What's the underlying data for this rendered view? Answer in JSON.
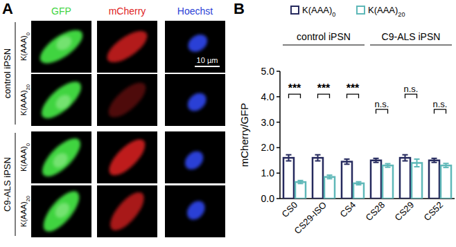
{
  "figure_labels": [
    "A",
    "B"
  ],
  "panel_a": {
    "channels": [
      {
        "name": "GFP",
        "color": "#3fd43f"
      },
      {
        "name": "mCherry",
        "color": "#e02424"
      },
      {
        "name": "Hoechst",
        "color": "#2b3fd6"
      }
    ],
    "row_groups": [
      {
        "label": "control iPSN",
        "rows": [
          "K(AAA)0",
          "K(AAA)20"
        ]
      },
      {
        "label": "C9-ALS iPSN",
        "rows": [
          "K(AAA)0",
          "K(AAA)20"
        ]
      }
    ],
    "scale_bar": "10 µm"
  },
  "chart_data": {
    "type": "bar",
    "categories": [
      "CS0",
      "CS29-ISO",
      "CS4",
      "CS28",
      "CS29",
      "CS52"
    ],
    "series": [
      {
        "name": "K(AAA)0",
        "color": "#262a5e",
        "values": [
          1.6,
          1.6,
          1.45,
          1.5,
          1.6,
          1.5
        ],
        "errors": [
          0.12,
          0.12,
          0.1,
          0.08,
          0.12,
          0.08
        ]
      },
      {
        "name": "K(AAA)20",
        "color": "#5fb8b8",
        "values": [
          0.65,
          0.85,
          0.6,
          1.3,
          1.4,
          1.3
        ],
        "errors": [
          0.06,
          0.07,
          0.06,
          0.07,
          0.15,
          0.08
        ]
      }
    ],
    "ylabel": "mCherry/GFP",
    "ylim": [
      0,
      5
    ],
    "yticks": [
      {
        "value": 0,
        "label": "0.0"
      },
      {
        "value": 1,
        "label": "1.0"
      },
      {
        "value": 2,
        "label": "2.0"
      },
      {
        "value": 3,
        "label": "3.0"
      },
      {
        "value": 4,
        "label": "4.0"
      },
      {
        "value": 5,
        "label": "5.0"
      }
    ],
    "groups": [
      {
        "label": "control iPSN",
        "from": "CS0",
        "to": "CS4"
      },
      {
        "label": "C9-ALS iPSN",
        "from": "CS28",
        "to": "CS52"
      }
    ],
    "annotations": [
      {
        "text": "***",
        "category": "CS0",
        "y": 4.1
      },
      {
        "text": "***",
        "category": "CS29-ISO",
        "y": 4.1
      },
      {
        "text": "***",
        "category": "CS4",
        "y": 4.1
      },
      {
        "text": "n.s.",
        "category": "CS28",
        "y": 3.5
      },
      {
        "text": "n.s.",
        "category": "CS29",
        "y": 4.1
      },
      {
        "text": "n.s.",
        "category": "CS52",
        "y": 3.5
      }
    ],
    "legend": "top"
  }
}
